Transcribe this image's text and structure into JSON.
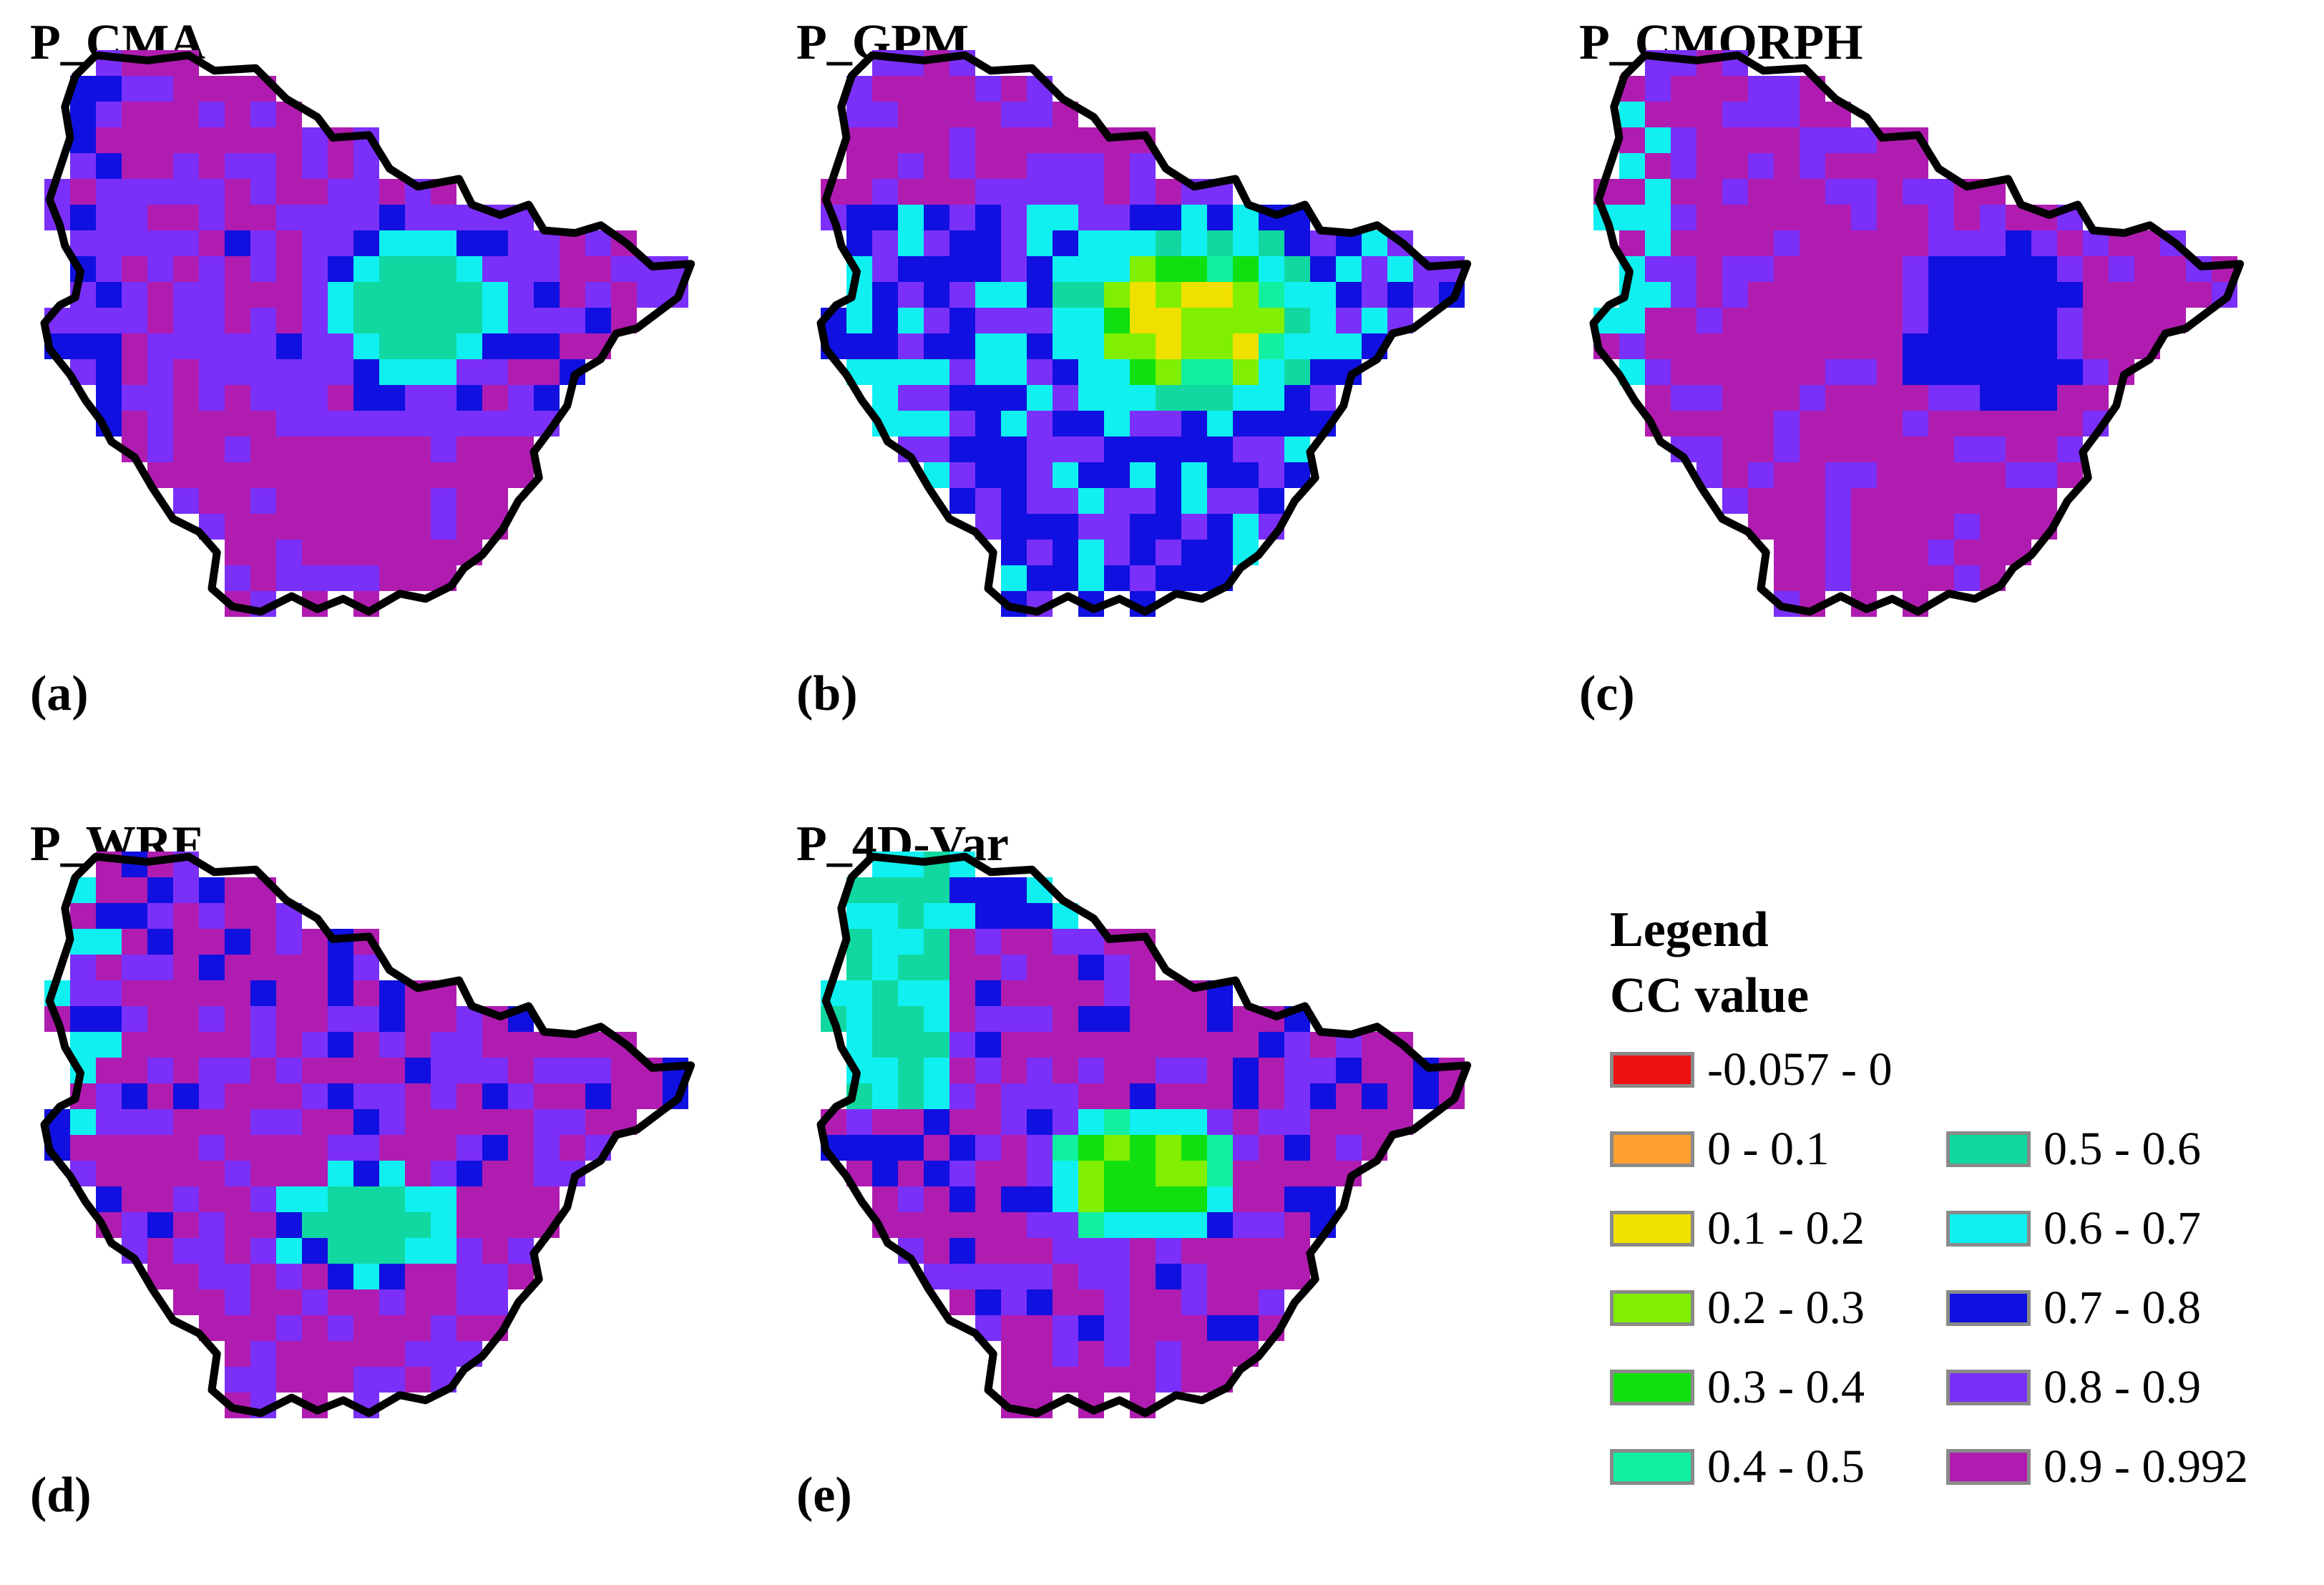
{
  "panels": [
    {
      "title": "P_CMA",
      "label": "(a)"
    },
    {
      "title": "P_GPM",
      "label": "(b)"
    },
    {
      "title": "P_CMORPH",
      "label": "(c)"
    },
    {
      "title": "P_WRF",
      "label": "(d)"
    },
    {
      "title": "P_4D-Var",
      "label": "(e)"
    }
  ],
  "legend": {
    "heading": "Legend",
    "subheading": "CC value",
    "items": [
      {
        "label": "-0.057 - 0",
        "color": "#ee1111"
      },
      {
        "label": "0 - 0.1",
        "color": "#ffa030"
      },
      {
        "label": "0.1 - 0.2",
        "color": "#f0e000"
      },
      {
        "label": "0.2 - 0.3",
        "color": "#80f000"
      },
      {
        "label": "0.3 - 0.4",
        "color": "#10e010"
      },
      {
        "label": "0.4 - 0.5",
        "color": "#10f0a0"
      },
      {
        "label": "0.5 - 0.6",
        "color": "#10d8a0"
      },
      {
        "label": "0.6 - 0.7",
        "color": "#10f0f0"
      },
      {
        "label": "0.7 - 0.8",
        "color": "#1010e0"
      },
      {
        "label": "0.8 - 0.9",
        "color": "#7a30f8"
      },
      {
        "label": "0.9 - 0.992",
        "color": "#b01cb0"
      }
    ]
  }
}
